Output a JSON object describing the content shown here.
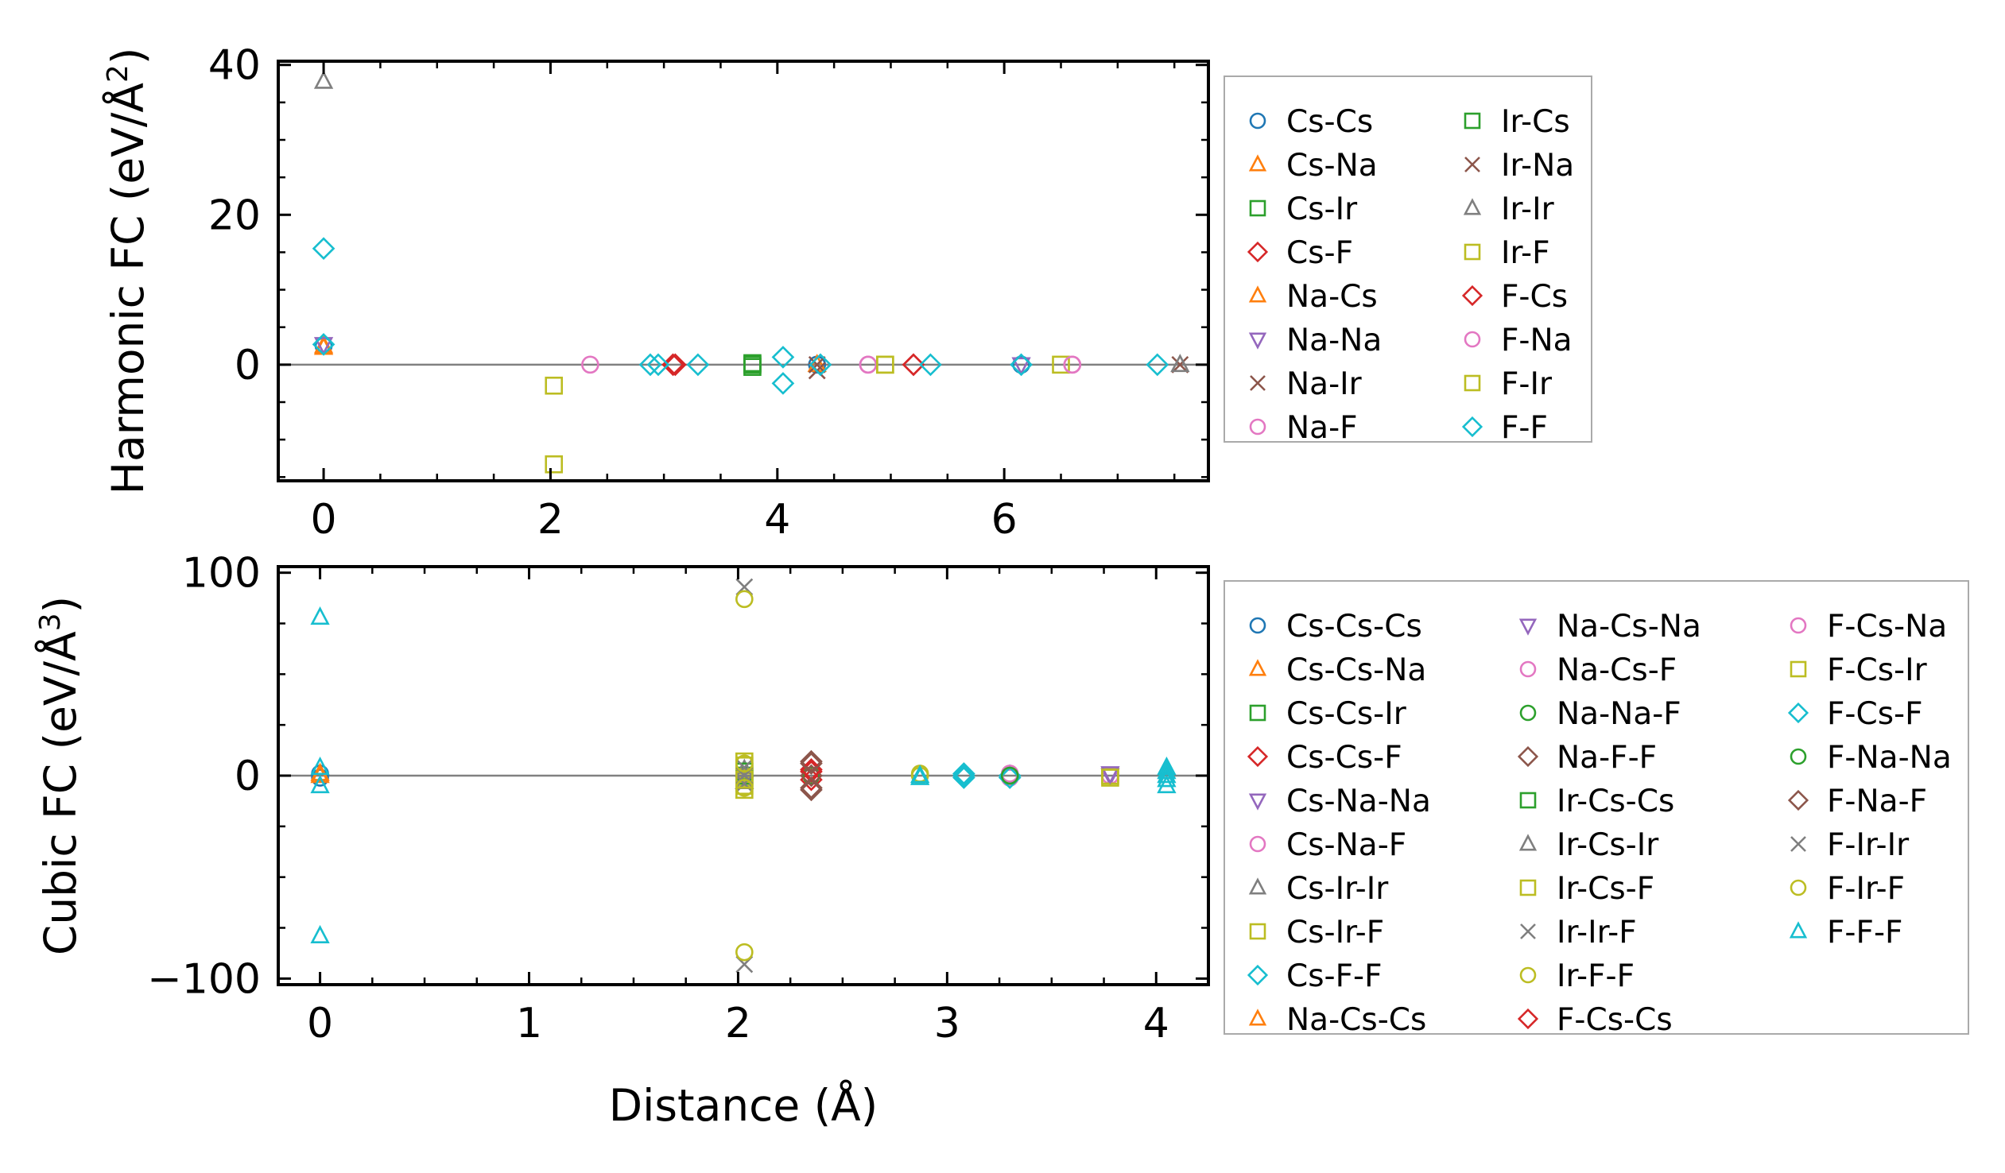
{
  "colors": {
    "Cs-Cs": "#1f77b4",
    "Cs-Na": "#ff7f0e",
    "Cs-Ir": "#2ca02c",
    "Cs-F": "#d62728",
    "Na-Cs": "#ff7f0e",
    "Na-Na": "#9467bd",
    "Na-Ir": "#8c564b",
    "Na-F": "#e377c2",
    "Ir-Cs": "#2ca02c",
    "Ir-Na": "#8c564b",
    "Ir-Ir": "#7f7f7f",
    "Ir-F": "#bcbd22",
    "F-Cs": "#d62728",
    "F-Na": "#e377c2",
    "F-Ir": "#bcbd22",
    "F-F": "#17becf",
    "Cs-Cs-Cs": "#1f77b4",
    "Cs-Cs-Na": "#ff7f0e",
    "Cs-Cs-Ir": "#2ca02c",
    "Cs-Cs-F": "#d62728",
    "Cs-Na-Na": "#9467bd",
    "Cs-Na-F": "#e377c2",
    "Cs-Ir-Ir": "#7f7f7f",
    "Cs-Ir-F": "#bcbd22",
    "Cs-F-F": "#17becf",
    "Na-Cs-Cs": "#ff7f0e",
    "Na-Cs-Na": "#9467bd",
    "Na-Cs-F": "#e377c2",
    "Na-Na-F": "#2ca02c",
    "Na-F-F": "#8c564b",
    "Ir-Cs-Cs": "#2ca02c",
    "Ir-Cs-Ir": "#7f7f7f",
    "Ir-Cs-F": "#bcbd22",
    "Ir-Ir-F": "#7f7f7f",
    "Ir-F-F": "#bcbd22",
    "F-Cs-Cs": "#d62728",
    "F-Cs-Na": "#e377c2",
    "F-Cs-Ir": "#bcbd22",
    "F-Cs-F": "#17becf",
    "F-Na-Na": "#2ca02c",
    "F-Na-F": "#8c564b",
    "F-Ir-Ir": "#7f7f7f",
    "F-Ir-F": "#bcbd22",
    "F-F-F": "#17becf"
  },
  "chart_data": [
    {
      "type": "scatter",
      "title": "",
      "xlabel": "",
      "ylabel": "Harmonic FC (eV/Å²)",
      "ylabel_parts": {
        "main": "Harmonic FC (eV/Å",
        "sup": "2",
        "tail": ")"
      },
      "xlim": [
        -0.4,
        7.8
      ],
      "ylim": [
        -15.5,
        40.5
      ],
      "xticks": [
        0,
        2,
        4,
        6
      ],
      "xtick_labels": [
        "0",
        "2",
        "4",
        "6"
      ],
      "yticks": [
        0,
        20,
        40
      ],
      "ytick_labels": [
        "0",
        "20",
        "40"
      ],
      "zero_line": true,
      "legend": {
        "location": "right",
        "columns": 2,
        "entries": [
          "Cs-Cs",
          "Cs-Na",
          "Cs-Ir",
          "Cs-F",
          "Na-Cs",
          "Na-Na",
          "Na-Ir",
          "Na-F",
          "Ir-Cs",
          "Ir-Na",
          "Ir-Ir",
          "Ir-F",
          "F-Cs",
          "F-Na",
          "F-Ir",
          "F-F"
        ]
      },
      "series": [
        {
          "name": "Cs-Cs",
          "marker": "circle",
          "points": [
            [
              0,
              2.5
            ],
            [
              4.35,
              0
            ],
            [
              6.15,
              0
            ]
          ]
        },
        {
          "name": "Cs-Na",
          "marker": "triangle-up",
          "points": [
            [
              0,
              2.5
            ],
            [
              4.35,
              0
            ]
          ]
        },
        {
          "name": "Cs-Ir",
          "marker": "square",
          "points": [
            [
              3.78,
              0.2
            ],
            [
              3.78,
              -0.3
            ]
          ]
        },
        {
          "name": "Cs-F",
          "marker": "diamond",
          "points": [
            [
              3.08,
              0
            ],
            [
              5.2,
              0
            ]
          ]
        },
        {
          "name": "Na-Cs",
          "marker": "triangle-up",
          "points": [
            [
              0,
              2.3
            ]
          ]
        },
        {
          "name": "Na-Na",
          "marker": "triangle-down",
          "points": [
            [
              0,
              2.7
            ],
            [
              6.15,
              0
            ]
          ]
        },
        {
          "name": "Na-Ir",
          "marker": "x",
          "points": [
            [
              4.35,
              -0.8
            ],
            [
              7.55,
              0
            ]
          ]
        },
        {
          "name": "Na-F",
          "marker": "circle",
          "points": [
            [
              2.35,
              0
            ],
            [
              4.8,
              0
            ],
            [
              6.6,
              0
            ]
          ]
        },
        {
          "name": "Ir-Cs",
          "marker": "square",
          "points": [
            [
              3.78,
              0
            ]
          ]
        },
        {
          "name": "Ir-Na",
          "marker": "x",
          "points": [
            [
              4.35,
              0
            ]
          ]
        },
        {
          "name": "Ir-Ir",
          "marker": "triangle-up",
          "points": [
            [
              0,
              37.8
            ],
            [
              7.55,
              0
            ]
          ]
        },
        {
          "name": "Ir-F",
          "marker": "square",
          "points": [
            [
              2.03,
              -2.8
            ],
            [
              2.03,
              -13.3
            ],
            [
              4.95,
              0
            ],
            [
              6.5,
              0
            ]
          ]
        },
        {
          "name": "F-Cs",
          "marker": "diamond",
          "points": [
            [
              3.1,
              0
            ],
            [
              5.2,
              0
            ]
          ]
        },
        {
          "name": "F-Na",
          "marker": "circle",
          "points": [
            [
              4.8,
              0
            ],
            [
              6.6,
              0
            ]
          ]
        },
        {
          "name": "F-Ir",
          "marker": "square",
          "points": [
            [
              4.95,
              0
            ]
          ]
        },
        {
          "name": "F-F",
          "marker": "diamond",
          "points": [
            [
              0,
              15.5
            ],
            [
              0,
              2.7
            ],
            [
              2.88,
              0
            ],
            [
              2.95,
              0
            ],
            [
              3.3,
              0
            ],
            [
              4.05,
              1.0
            ],
            [
              4.05,
              -2.5
            ],
            [
              4.38,
              0
            ],
            [
              5.35,
              0
            ],
            [
              6.15,
              0
            ],
            [
              7.35,
              0
            ]
          ]
        }
      ]
    },
    {
      "type": "scatter",
      "title": "",
      "xlabel": "Distance (Å)",
      "ylabel": "Cubic FC (eV/Å³)",
      "ylabel_parts": {
        "main": "Cubic FC (eV/Å",
        "sup": "3",
        "tail": ")"
      },
      "xlim": [
        -0.2,
        4.25
      ],
      "ylim": [
        -103,
        103
      ],
      "xticks": [
        0,
        1,
        2,
        3,
        4
      ],
      "xtick_labels": [
        "0",
        "1",
        "2",
        "3",
        "4"
      ],
      "yticks": [
        -100,
        0,
        100
      ],
      "ytick_labels": [
        "−100",
        "0",
        "100"
      ],
      "zero_line": true,
      "legend": {
        "location": "right",
        "columns": 3,
        "entries": [
          "Cs-Cs-Cs",
          "Cs-Cs-Na",
          "Cs-Cs-Ir",
          "Cs-Cs-F",
          "Cs-Na-Na",
          "Cs-Na-F",
          "Cs-Ir-Ir",
          "Cs-Ir-F",
          "Cs-F-F",
          "Na-Cs-Cs",
          "Na-Cs-Na",
          "Na-Cs-F",
          "Na-Na-F",
          "Na-F-F",
          "Ir-Cs-Cs",
          "Ir-Cs-Ir",
          "Ir-Cs-F",
          "Ir-Ir-F",
          "Ir-F-F",
          "F-Cs-Cs",
          "F-Cs-Na",
          "F-Cs-Ir",
          "F-Cs-F",
          "F-Na-Na",
          "F-Na-F",
          "F-Ir-Ir",
          "F-Ir-F",
          "F-F-F"
        ]
      },
      "series": [
        {
          "name": "Cs-Cs-Cs",
          "marker": "circle",
          "points": [
            [
              0,
              -1
            ],
            [
              0,
              1
            ],
            [
              3.08,
              0
            ],
            [
              3.3,
              0
            ]
          ]
        },
        {
          "name": "Cs-Cs-Na",
          "marker": "triangle-up",
          "points": [
            [
              0,
              0
            ]
          ]
        },
        {
          "name": "Cs-Cs-Ir",
          "marker": "square",
          "points": [
            [
              2.03,
              0
            ]
          ]
        },
        {
          "name": "Cs-Cs-F",
          "marker": "diamond",
          "points": [
            [
              2.35,
              2
            ],
            [
              2.35,
              -2
            ]
          ]
        },
        {
          "name": "Cs-Na-Na",
          "marker": "triangle-down",
          "points": [
            [
              3.78,
              0
            ]
          ]
        },
        {
          "name": "Cs-Na-F",
          "marker": "circle",
          "points": [
            [
              3.3,
              0
            ],
            [
              3.78,
              0
            ]
          ]
        },
        {
          "name": "Cs-Ir-Ir",
          "marker": "triangle-up",
          "points": [
            [
              2.03,
              3
            ]
          ]
        },
        {
          "name": "Cs-Ir-F",
          "marker": "square",
          "points": [
            [
              2.03,
              5
            ],
            [
              2.03,
              -5
            ],
            [
              2.03,
              -1
            ],
            [
              3.78,
              0
            ]
          ]
        },
        {
          "name": "Cs-F-F",
          "marker": "diamond",
          "points": [
            [
              3.08,
              0
            ],
            [
              3.08,
              -1
            ],
            [
              3.3,
              0
            ]
          ]
        },
        {
          "name": "Na-Cs-Cs",
          "marker": "triangle-up",
          "points": [
            [
              0,
              1
            ]
          ]
        },
        {
          "name": "Na-Cs-Na",
          "marker": "triangle-down",
          "points": [
            [
              3.78,
              1
            ]
          ]
        },
        {
          "name": "Na-Cs-F",
          "marker": "circle",
          "points": [
            [
              3.3,
              -1
            ]
          ]
        },
        {
          "name": "Na-Na-F",
          "marker": "circle",
          "points": [
            [
              2.35,
              0
            ]
          ]
        },
        {
          "name": "Na-F-F",
          "marker": "diamond",
          "points": [
            [
              2.35,
              7
            ],
            [
              2.35,
              -7
            ],
            [
              2.35,
              0
            ]
          ]
        },
        {
          "name": "Ir-Cs-Cs",
          "marker": "square",
          "points": [
            [
              2.03,
              2
            ]
          ]
        },
        {
          "name": "Ir-Cs-Ir",
          "marker": "triangle-up",
          "points": [
            [
              2.03,
              -3
            ]
          ]
        },
        {
          "name": "Ir-Cs-F",
          "marker": "square",
          "points": [
            [
              2.03,
              7
            ],
            [
              2.03,
              -7
            ]
          ]
        },
        {
          "name": "Ir-Ir-F",
          "marker": "x",
          "points": [
            [
              2.03,
              93
            ],
            [
              2.03,
              -93
            ],
            [
              2.03,
              4
            ],
            [
              2.03,
              -4
            ]
          ]
        },
        {
          "name": "Ir-F-F",
          "marker": "circle",
          "points": [
            [
              2.03,
              87
            ],
            [
              2.03,
              -87
            ],
            [
              2.87,
              1
            ]
          ]
        },
        {
          "name": "F-Cs-Cs",
          "marker": "diamond",
          "points": [
            [
              2.35,
              3
            ]
          ]
        },
        {
          "name": "F-Cs-Na",
          "marker": "circle",
          "points": [
            [
              3.3,
              1
            ]
          ]
        },
        {
          "name": "F-Cs-Ir",
          "marker": "square",
          "points": [
            [
              2.03,
              -2
            ],
            [
              3.78,
              -1
            ]
          ]
        },
        {
          "name": "F-Cs-F",
          "marker": "diamond",
          "points": [
            [
              3.08,
              1
            ],
            [
              3.3,
              -1
            ]
          ]
        },
        {
          "name": "F-Na-Na",
          "marker": "circle",
          "points": [
            [
              3.3,
              0
            ]
          ]
        },
        {
          "name": "F-Na-F",
          "marker": "diamond",
          "points": [
            [
              2.35,
              -6
            ],
            [
              2.35,
              6
            ]
          ]
        },
        {
          "name": "F-Ir-Ir",
          "marker": "x",
          "points": [
            [
              2.03,
              0
            ]
          ]
        },
        {
          "name": "F-Ir-F",
          "marker": "circle",
          "points": [
            [
              2.03,
              6
            ],
            [
              2.03,
              -6
            ],
            [
              2.87,
              0
            ]
          ]
        },
        {
          "name": "F-F-F",
          "marker": "triangle-up",
          "points": [
            [
              0,
              78
            ],
            [
              0,
              -79
            ],
            [
              0,
              4
            ],
            [
              0,
              -5
            ],
            [
              2.87,
              -1
            ],
            [
              2.87,
              0
            ],
            [
              4.05,
              4
            ],
            [
              4.05,
              2
            ],
            [
              4.05,
              0
            ],
            [
              4.05,
              -2
            ],
            [
              4.05,
              -5
            ]
          ]
        }
      ]
    }
  ]
}
